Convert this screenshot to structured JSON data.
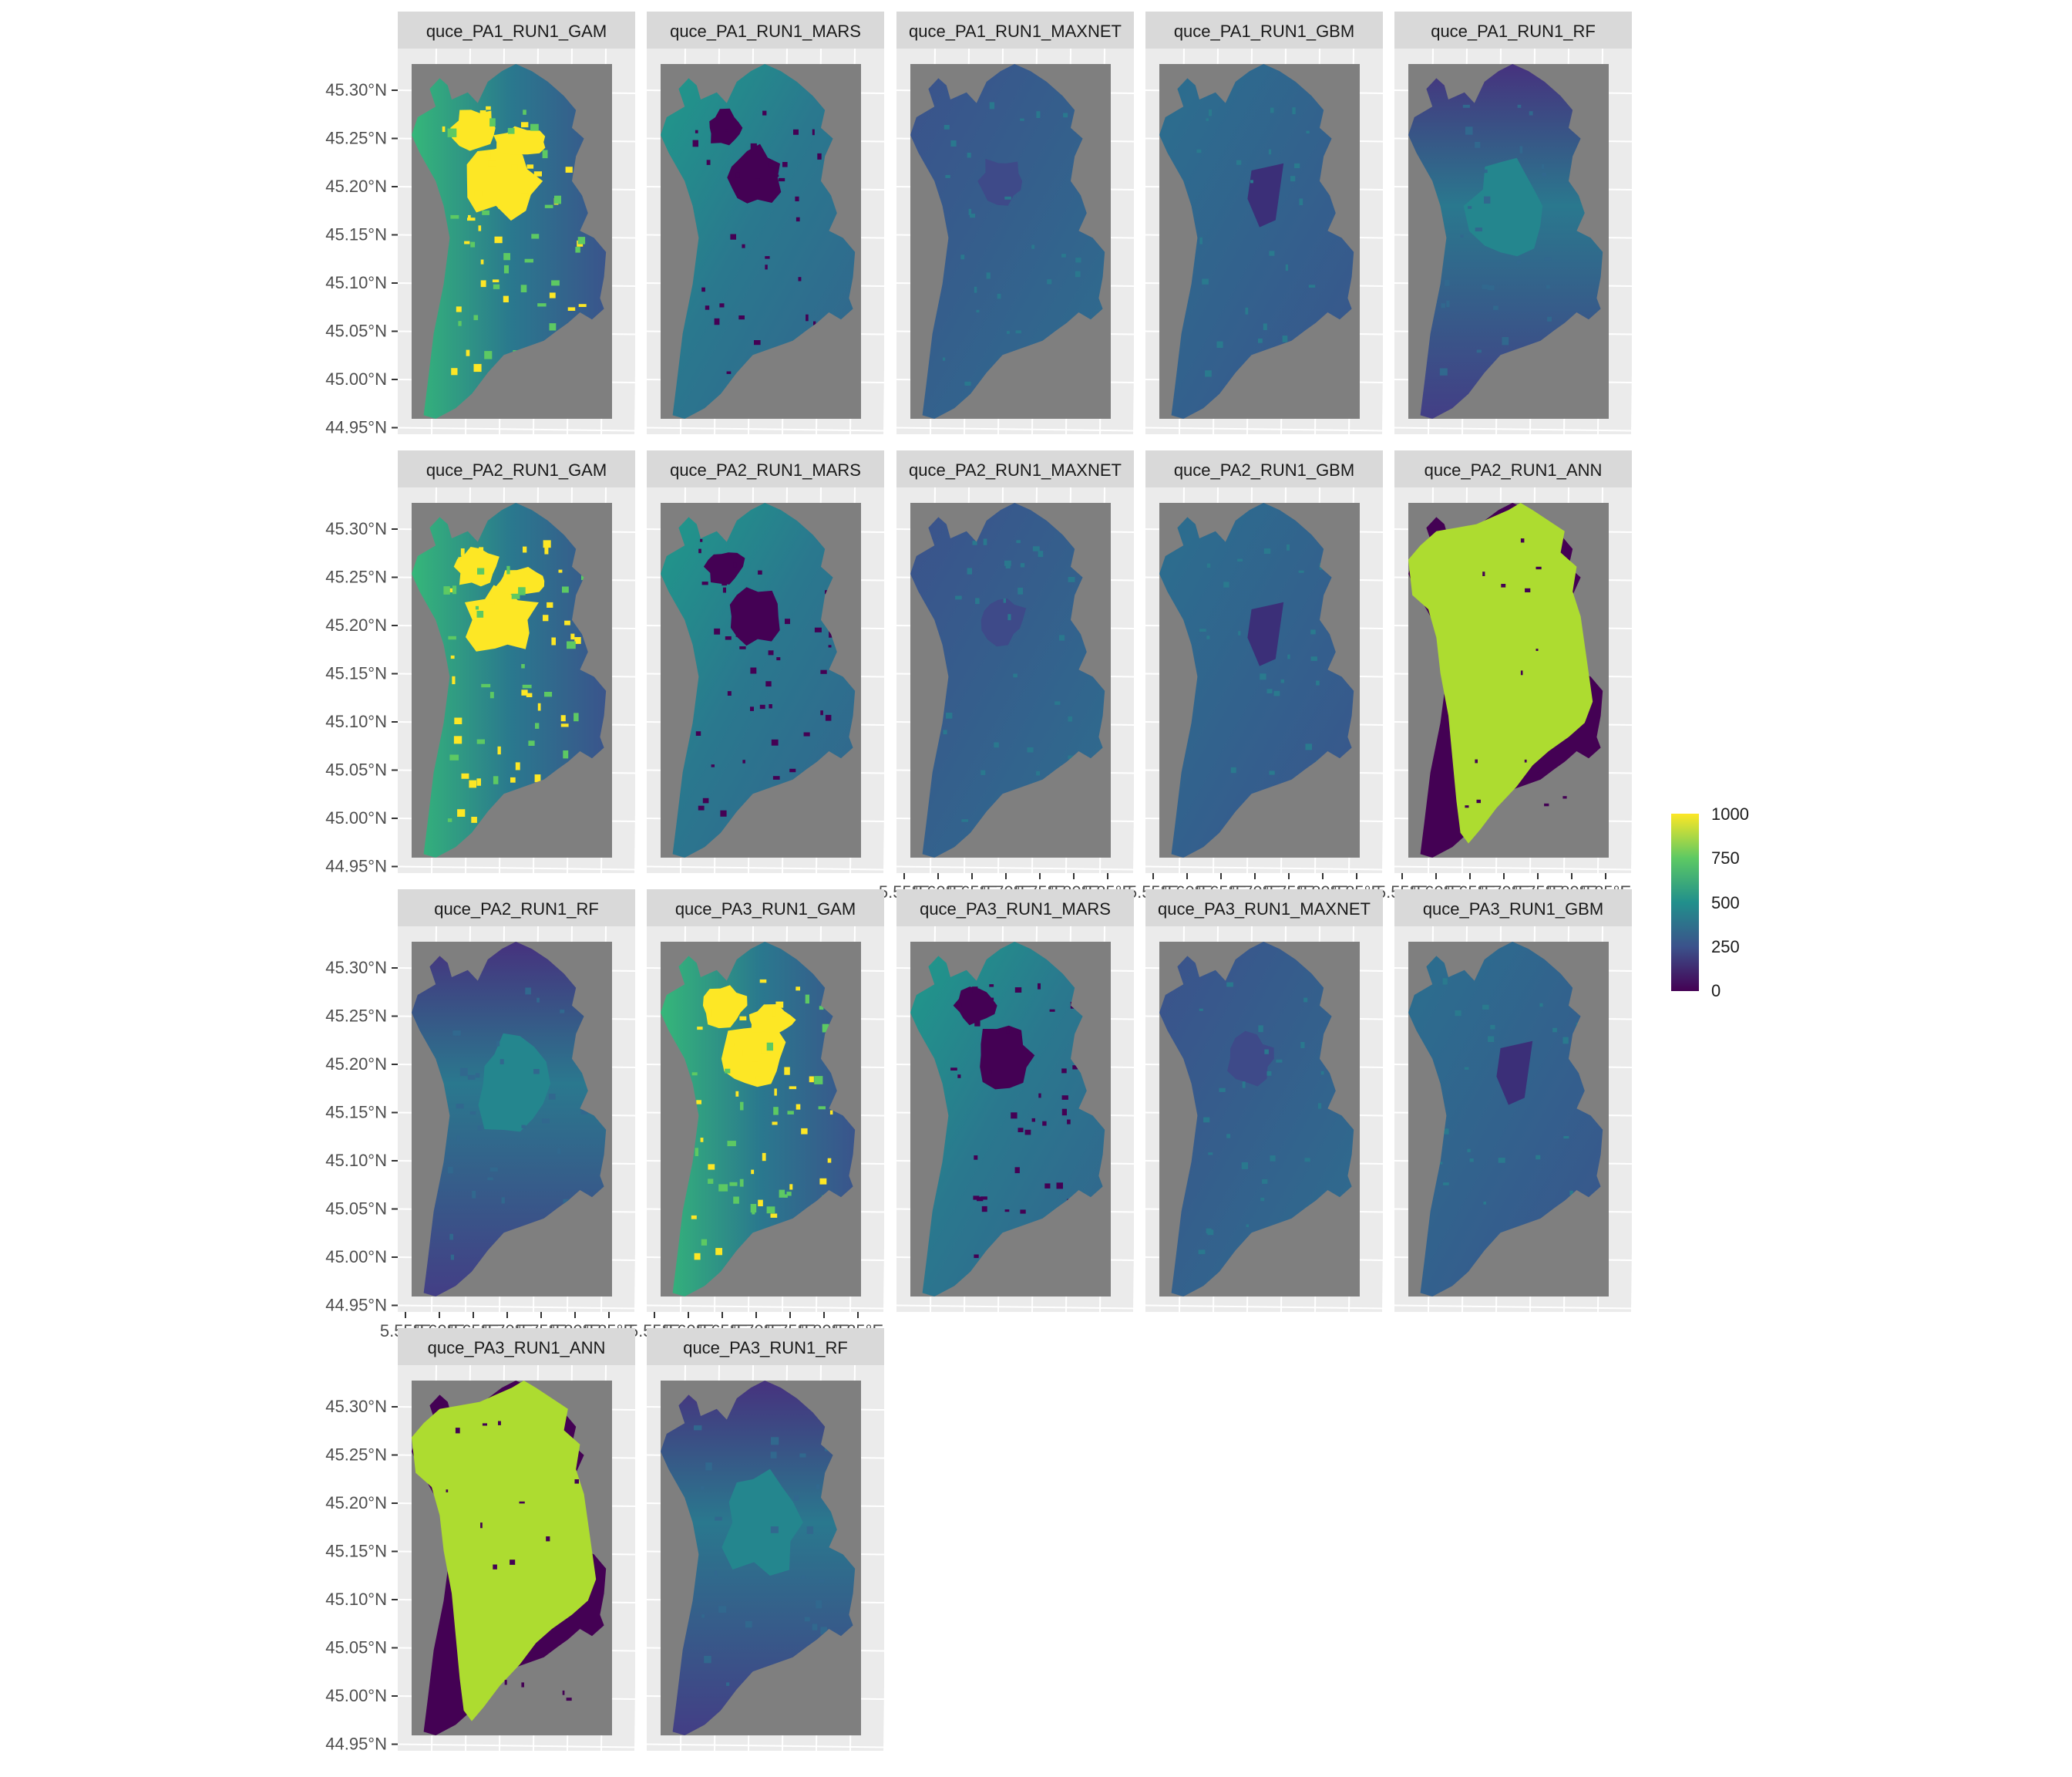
{
  "panels": [
    {
      "title": "quce_PA1_RUN1_GAM",
      "style": "gam"
    },
    {
      "title": "quce_PA1_RUN1_MARS",
      "style": "mars"
    },
    {
      "title": "quce_PA1_RUN1_MAXNET",
      "style": "maxnet"
    },
    {
      "title": "quce_PA1_RUN1_GBM",
      "style": "gbm"
    },
    {
      "title": "quce_PA1_RUN1_RF",
      "style": "rf"
    },
    {
      "title": "quce_PA2_RUN1_GAM",
      "style": "gam"
    },
    {
      "title": "quce_PA2_RUN1_MARS",
      "style": "mars"
    },
    {
      "title": "quce_PA2_RUN1_MAXNET",
      "style": "maxnet"
    },
    {
      "title": "quce_PA2_RUN1_GBM",
      "style": "gbm"
    },
    {
      "title": "quce_PA2_RUN1_ANN",
      "style": "ann"
    },
    {
      "title": "quce_PA2_RUN1_RF",
      "style": "rf"
    },
    {
      "title": "quce_PA3_RUN1_GAM",
      "style": "gam"
    },
    {
      "title": "quce_PA3_RUN1_MARS",
      "style": "mars"
    },
    {
      "title": "quce_PA3_RUN1_MAXNET",
      "style": "maxnet"
    },
    {
      "title": "quce_PA3_RUN1_GBM",
      "style": "gbm"
    },
    {
      "title": "quce_PA3_RUN1_ANN",
      "style": "ann"
    },
    {
      "title": "quce_PA3_RUN1_RF",
      "style": "rf"
    }
  ],
  "y_ticks": [
    "45.30°N",
    "45.25°N",
    "45.20°N",
    "45.15°N",
    "45.10°N",
    "45.05°N",
    "45.00°N",
    "44.95°N"
  ],
  "x_ticks": [
    "5.55°E",
    "5.60°E",
    "5.65°E",
    "5.70°E",
    "5.75°E",
    "5.80°E",
    "5.85°E"
  ],
  "legend": {
    "labels": [
      "1000",
      "750",
      "500",
      "250",
      "0"
    ],
    "min": 0,
    "max": 1000,
    "colors": [
      "#440154",
      "#3b528b",
      "#21908c",
      "#5dc963",
      "#fde725"
    ]
  },
  "colors": {
    "panel_bg": "#ebebeb",
    "strip_bg": "#d9d9d9",
    "raster_bg": "#7f7f7f",
    "grid": "#ffffff"
  }
}
